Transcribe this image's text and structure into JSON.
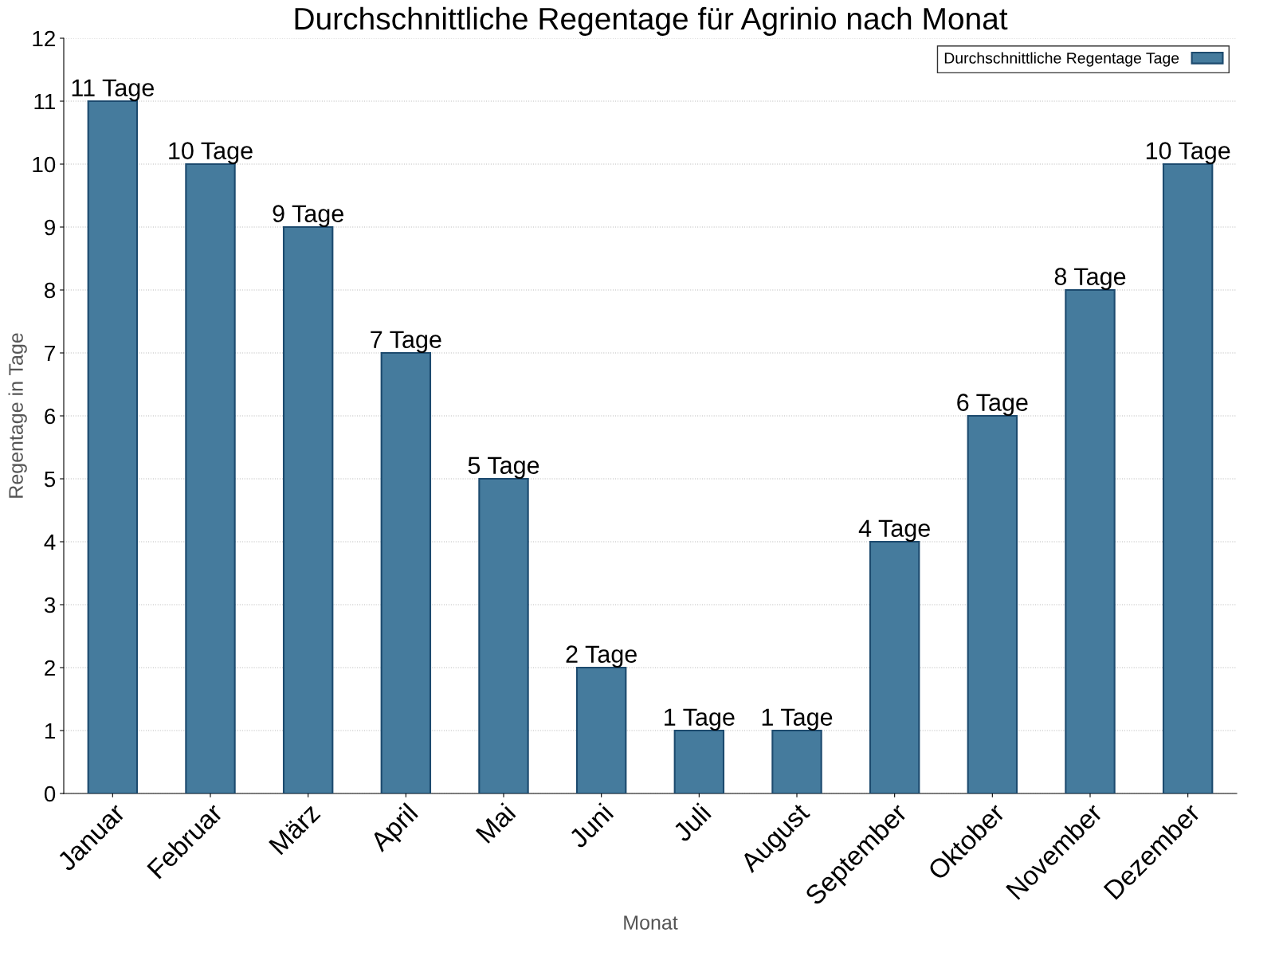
{
  "chart_data": {
    "type": "bar",
    "title": "Durchschnittliche Regentage für Agrinio nach Monat",
    "xlabel": "Monat",
    "ylabel": "Regentage in Tage",
    "categories": [
      "Januar",
      "Februar",
      "März",
      "April",
      "Mai",
      "Juni",
      "Juli",
      "August",
      "September",
      "Oktober",
      "November",
      "Dezember"
    ],
    "series": [
      {
        "name": "Durchschnittliche Regentage Tage",
        "color": "#457b9d",
        "values": [
          11,
          10,
          9,
          7,
          5,
          2,
          1,
          1,
          4,
          6,
          8,
          10
        ],
        "value_labels": [
          "11 Tage",
          "10 Tage",
          "9 Tage",
          "7 Tage",
          "5 Tage",
          "2 Tage",
          "1 Tage",
          "1 Tage",
          "4 Tage",
          "6 Tage",
          "8 Tage",
          "10 Tage"
        ]
      }
    ],
    "ylim": [
      0,
      12
    ],
    "yticks": [
      0,
      1,
      2,
      3,
      4,
      5,
      6,
      7,
      8,
      9,
      10,
      11,
      12
    ],
    "grid": "y",
    "legend": "top right"
  }
}
